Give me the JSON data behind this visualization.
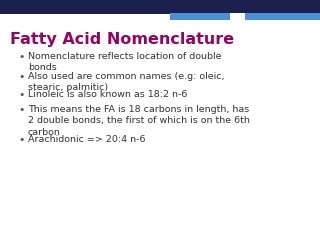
{
  "title": "Fatty Acid Nomenclature",
  "title_color": "#990066",
  "title_fontsize": 11.5,
  "background_color": "#ffffff",
  "top_bar_dark_color": "#1a1f4e",
  "top_bar_light_color": "#4a90d9",
  "bullet_points": [
    "Nomenclature reflects location of double\nbonds",
    "Also used are common names (e.g: oleic,\nstearic, palmitic)",
    "Linoleic is also known as 18:2 n-6",
    "This means the FA is 18 carbons in length, has\n2 double bonds, the first of which is on the 6th\ncarbon",
    "Arachidonic => 20:4 n-6"
  ],
  "bullet_color": "#555555",
  "bullet_fontsize": 6.8,
  "text_color": "#333333"
}
